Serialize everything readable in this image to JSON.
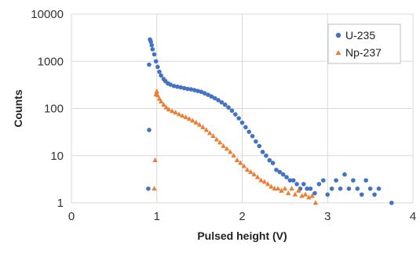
{
  "chart_data": {
    "type": "scatter",
    "xlabel": "Pulsed height (V)",
    "ylabel": "Counts",
    "xlim": [
      0,
      4
    ],
    "ylim": [
      1,
      10000
    ],
    "y_scale": "log",
    "grid": true,
    "legend_position": "top-right",
    "x_ticks": [
      "0",
      "1",
      "2",
      "3",
      "4"
    ],
    "y_ticks": [
      "1",
      "10",
      "100",
      "1000",
      "10000"
    ],
    "series": [
      {
        "name": "U-235",
        "color": "#4472c4",
        "marker": "circle",
        "points": [
          [
            0.9,
            2
          ],
          [
            0.91,
            35
          ],
          [
            0.91,
            850
          ],
          [
            0.92,
            2900
          ],
          [
            0.93,
            2600
          ],
          [
            0.94,
            2200
          ],
          [
            0.95,
            1800
          ],
          [
            0.97,
            1400
          ],
          [
            0.99,
            1000
          ],
          [
            1.01,
            760
          ],
          [
            1.03,
            600
          ],
          [
            1.05,
            500
          ],
          [
            1.08,
            420
          ],
          [
            1.1,
            380
          ],
          [
            1.13,
            340
          ],
          [
            1.16,
            320
          ],
          [
            1.2,
            300
          ],
          [
            1.24,
            290
          ],
          [
            1.28,
            280
          ],
          [
            1.32,
            270
          ],
          [
            1.36,
            260
          ],
          [
            1.4,
            255
          ],
          [
            1.44,
            245
          ],
          [
            1.48,
            235
          ],
          [
            1.52,
            225
          ],
          [
            1.56,
            210
          ],
          [
            1.6,
            195
          ],
          [
            1.64,
            180
          ],
          [
            1.68,
            165
          ],
          [
            1.72,
            150
          ],
          [
            1.76,
            135
          ],
          [
            1.8,
            120
          ],
          [
            1.84,
            105
          ],
          [
            1.88,
            90
          ],
          [
            1.92,
            75
          ],
          [
            1.96,
            62
          ],
          [
            2.0,
            50
          ],
          [
            2.04,
            40
          ],
          [
            2.08,
            32
          ],
          [
            2.12,
            26
          ],
          [
            2.16,
            20
          ],
          [
            2.2,
            16
          ],
          [
            2.24,
            12
          ],
          [
            2.28,
            10
          ],
          [
            2.32,
            8
          ],
          [
            2.36,
            7
          ],
          [
            2.4,
            5
          ],
          [
            2.44,
            4.5
          ],
          [
            2.48,
            4
          ],
          [
            2.52,
            3.5
          ],
          [
            2.56,
            3
          ],
          [
            2.6,
            3
          ],
          [
            2.64,
            2.5
          ],
          [
            2.68,
            2
          ],
          [
            2.72,
            2.5
          ],
          [
            2.76,
            2
          ],
          [
            2.8,
            2
          ],
          [
            2.85,
            1.6
          ],
          [
            2.9,
            2.5
          ],
          [
            2.95,
            3
          ],
          [
            3.0,
            1.5
          ],
          [
            3.05,
            2
          ],
          [
            3.1,
            3
          ],
          [
            3.15,
            2
          ],
          [
            3.2,
            4
          ],
          [
            3.25,
            2
          ],
          [
            3.3,
            3
          ],
          [
            3.35,
            2
          ],
          [
            3.4,
            1.5
          ],
          [
            3.45,
            3
          ],
          [
            3.5,
            2
          ],
          [
            3.55,
            1.5
          ],
          [
            3.6,
            2
          ],
          [
            3.75,
            1
          ]
        ]
      },
      {
        "name": "Np-237",
        "color": "#ed7d31",
        "marker": "triangle",
        "points": [
          [
            0.97,
            2
          ],
          [
            0.98,
            8
          ],
          [
            0.99,
            200
          ],
          [
            1.0,
            230
          ],
          [
            1.01,
            190
          ],
          [
            1.03,
            160
          ],
          [
            1.05,
            140
          ],
          [
            1.08,
            120
          ],
          [
            1.11,
            105
          ],
          [
            1.14,
            95
          ],
          [
            1.18,
            88
          ],
          [
            1.22,
            82
          ],
          [
            1.26,
            75
          ],
          [
            1.3,
            70
          ],
          [
            1.34,
            65
          ],
          [
            1.38,
            60
          ],
          [
            1.42,
            55
          ],
          [
            1.46,
            50
          ],
          [
            1.5,
            45
          ],
          [
            1.54,
            40
          ],
          [
            1.58,
            35
          ],
          [
            1.62,
            30
          ],
          [
            1.66,
            26
          ],
          [
            1.7,
            22
          ],
          [
            1.74,
            19
          ],
          [
            1.78,
            16
          ],
          [
            1.82,
            14
          ],
          [
            1.86,
            12
          ],
          [
            1.9,
            10
          ],
          [
            1.94,
            8
          ],
          [
            1.98,
            7
          ],
          [
            2.02,
            6
          ],
          [
            2.06,
            5
          ],
          [
            2.1,
            4.5
          ],
          [
            2.14,
            4
          ],
          [
            2.18,
            3.5
          ],
          [
            2.22,
            3
          ],
          [
            2.26,
            2.8
          ],
          [
            2.3,
            2.5
          ],
          [
            2.34,
            2.2
          ],
          [
            2.38,
            2
          ],
          [
            2.42,
            2
          ],
          [
            2.46,
            1.8
          ],
          [
            2.5,
            2
          ],
          [
            2.54,
            1.6
          ],
          [
            2.58,
            2
          ],
          [
            2.62,
            1.5
          ],
          [
            2.66,
            1.8
          ],
          [
            2.7,
            1.4
          ],
          [
            2.74,
            1.5
          ],
          [
            2.78,
            1.3
          ],
          [
            2.82,
            1.4
          ],
          [
            2.86,
            1
          ]
        ]
      }
    ]
  }
}
